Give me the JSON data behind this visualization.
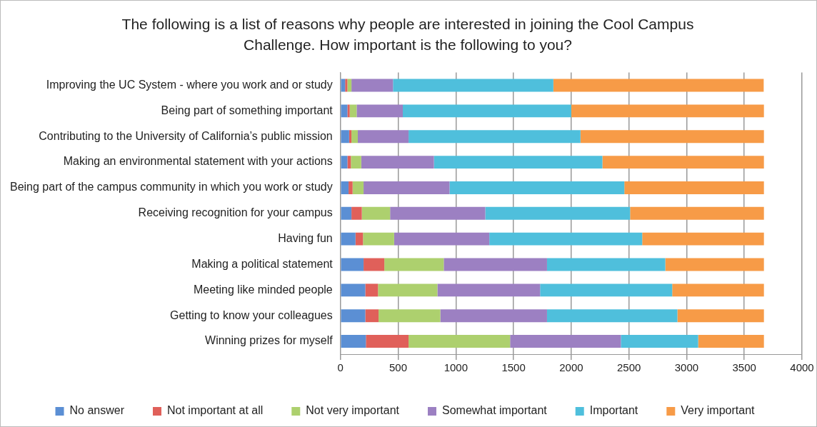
{
  "chart_data": {
    "type": "bar",
    "orientation": "horizontal",
    "stacked": true,
    "title": "The following is a list of reasons why people are interested in joining the Cool Campus Challenge. How important is the following to you?",
    "categories": [
      "Improving the UC System - where you work and or study",
      "Being part of something important",
      "Contributing to the University of California’s public mission",
      "Making an environmental statement with your actions",
      "Being part of the campus community in which you work or study",
      "Receiving recognition for your campus",
      "Having fun",
      "Making a political statement",
      "Meeting like minded people",
      "Getting to know your colleagues",
      "Winning prizes for myself"
    ],
    "series": [
      {
        "name": "No answer",
        "color": "#5b8fd4",
        "values": [
          40,
          60,
          75,
          60,
          70,
          95,
          130,
          200,
          215,
          215,
          220
        ]
      },
      {
        "name": "Not important at all",
        "color": "#e0605a",
        "values": [
          20,
          20,
          20,
          30,
          35,
          90,
          65,
          180,
          110,
          115,
          370
        ]
      },
      {
        "name": "Not very important",
        "color": "#add06e",
        "values": [
          35,
          60,
          55,
          90,
          95,
          245,
          270,
          515,
          515,
          535,
          880
        ]
      },
      {
        "name": "Somewhat important",
        "color": "#9c80c2",
        "values": [
          360,
          400,
          440,
          630,
          745,
          825,
          825,
          895,
          890,
          925,
          960
        ]
      },
      {
        "name": "Important",
        "color": "#4fbfdc",
        "values": [
          1390,
          1460,
          1490,
          1460,
          1515,
          1255,
          1325,
          1025,
          1145,
          1130,
          670
        ]
      },
      {
        "name": "Very important",
        "color": "#f79b47",
        "values": [
          1823,
          1670,
          1590,
          1400,
          1210,
          1160,
          1055,
          855,
          795,
          750,
          570
        ]
      }
    ],
    "xlim": [
      0,
      4000
    ],
    "xticks": [
      0,
      500,
      1000,
      1500,
      2000,
      2500,
      3000,
      3500,
      4000
    ],
    "grid": "x",
    "legend": "bottom"
  }
}
